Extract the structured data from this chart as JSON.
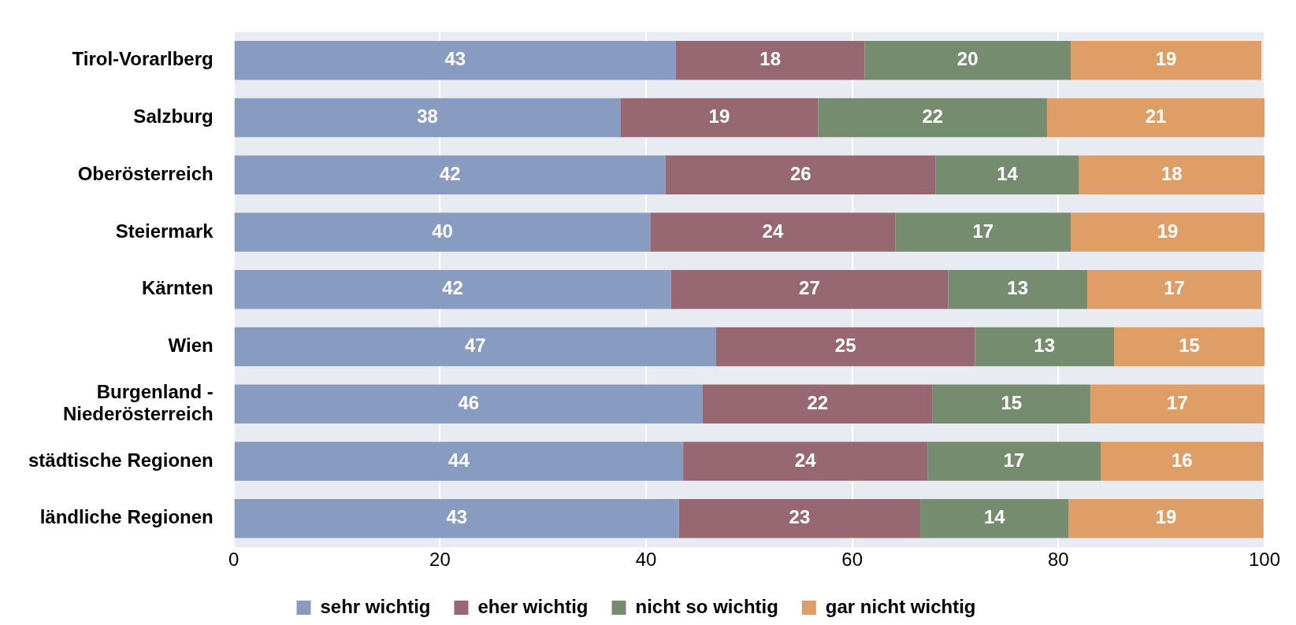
{
  "chart_data": {
    "type": "bar",
    "orientation": "horizontal",
    "stacked": true,
    "categories": [
      "Tirol-Vorarlberg",
      "Salzburg",
      "Oberösterreich",
      "Steiermark",
      "Kärnten",
      "Wien",
      "Burgenland -\nNiederösterreich",
      "städtische Regionen",
      "ländliche Regionen"
    ],
    "series": [
      {
        "name": "sehr wichtig",
        "color": "#879cc0",
        "values": [
          42.9,
          37.5,
          41.9,
          40.4,
          42.4,
          46.8,
          45.5,
          43.6,
          43.2
        ],
        "value_labels": [
          "43",
          "38",
          "42",
          "40",
          "42",
          "47",
          "46",
          "44",
          "43"
        ]
      },
      {
        "name": "eher wichtig",
        "color": "#986872",
        "values": [
          18.3,
          19.2,
          26.2,
          23.8,
          26.9,
          25.1,
          22.3,
          23.7,
          23.4
        ],
        "value_labels": [
          "18",
          "19",
          "26",
          "24",
          "27",
          "25",
          "22",
          "24",
          "23"
        ]
      },
      {
        "name": "nicht so wichtig",
        "color": "#758d6e",
        "values": [
          20.0,
          22.2,
          13.9,
          17.0,
          13.5,
          13.5,
          15.3,
          16.8,
          14.4
        ],
        "value_labels": [
          "20",
          "22",
          "14",
          "17",
          "13",
          "13",
          "15",
          "17",
          "14"
        ]
      },
      {
        "name": "gar nicht wichtig",
        "color": "#e09e67",
        "values": [
          18.5,
          21.1,
          18.0,
          18.8,
          16.9,
          14.6,
          16.9,
          15.8,
          18.9
        ],
        "value_labels": [
          "19",
          "21",
          "18",
          "19",
          "17",
          "15",
          "17",
          "16",
          "19"
        ]
      }
    ],
    "xlim": [
      0,
      100
    ],
    "xticks": [
      0,
      20,
      40,
      60,
      80,
      100
    ],
    "grid": "x",
    "legend": "bottom"
  }
}
